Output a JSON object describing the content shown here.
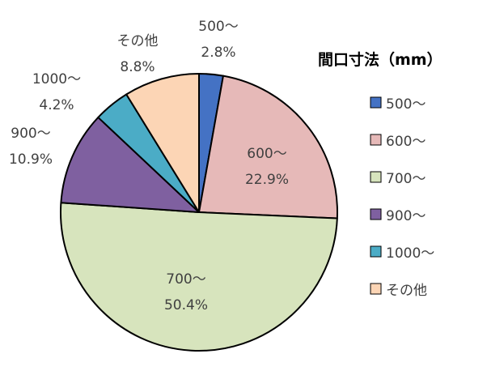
{
  "chart_data": {
    "type": "pie",
    "legend_title": "間口寸法（mm）",
    "legend_position": "right",
    "start_angle_deg": 0,
    "direction": "clockwise",
    "slices": [
      {
        "label": "500～",
        "value": 2.8,
        "value_label": "2.8%",
        "color": "#4472c4"
      },
      {
        "label": "600～",
        "value": 22.9,
        "value_label": "22.9%",
        "color": "#e6b9b8"
      },
      {
        "label": "700～",
        "value": 50.4,
        "value_label": "50.4%",
        "color": "#d7e4bd"
      },
      {
        "label": "900～",
        "value": 10.9,
        "value_label": "10.9%",
        "color": "#7f60a0"
      },
      {
        "label": "1000～",
        "value": 4.2,
        "value_label": "4.2%",
        "color": "#4bacc6"
      },
      {
        "label": "その他",
        "value": 8.8,
        "value_label": "8.8%",
        "color": "#fcd5b5"
      }
    ]
  }
}
